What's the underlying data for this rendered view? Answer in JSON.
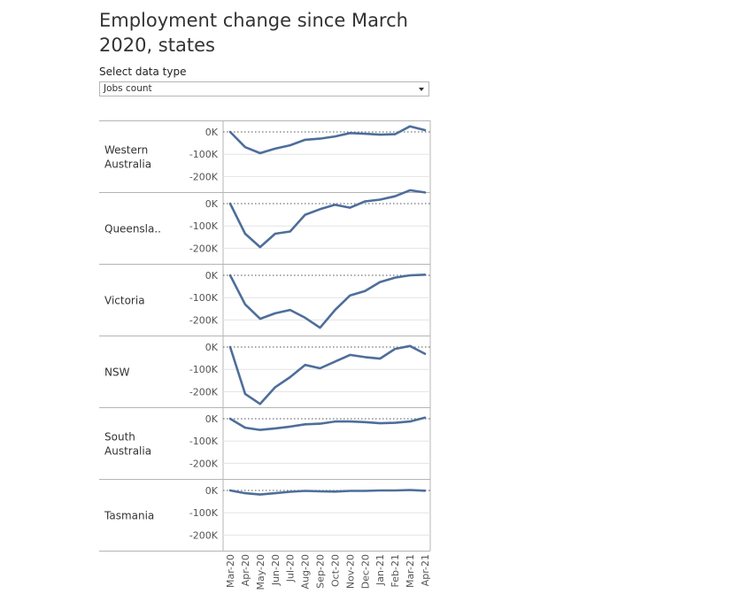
{
  "title": "Employment change since March 2020, states",
  "filter": {
    "label": "Select data type",
    "selected": "Jobs count"
  },
  "colors": {
    "line": "#4e6e9a",
    "grid": "#e3e3e3",
    "zero": "#777777",
    "border": "#b5b5b5"
  },
  "chart_data": {
    "type": "line",
    "x": [
      "Mar-20",
      "Apr-20",
      "May-20",
      "Jun-20",
      "Jul-20",
      "Aug-20",
      "Sep-20",
      "Oct-20",
      "Nov-20",
      "Dec-20",
      "Jan-21",
      "Feb-21",
      "Mar-21",
      "Apr-21"
    ],
    "yticks": [
      0,
      -100,
      -200
    ],
    "yticklabels": [
      "0K",
      "-100K",
      "-200K"
    ],
    "ylim": [
      -250,
      20
    ],
    "series": [
      {
        "name": "Western Australia",
        "label_lines": [
          "Western",
          "Australia"
        ],
        "values": [
          0,
          -68,
          -95,
          -75,
          -60,
          -35,
          -30,
          -20,
          -5,
          -8,
          -12,
          -10,
          25,
          8
        ]
      },
      {
        "name": "Queensla..",
        "label_lines": [
          "Queensla.."
        ],
        "values": [
          0,
          -135,
          -195,
          -135,
          -125,
          -50,
          -25,
          -5,
          -18,
          10,
          18,
          33,
          60,
          50
        ]
      },
      {
        "name": "Victoria",
        "label_lines": [
          "Victoria"
        ],
        "values": [
          0,
          -130,
          -195,
          -170,
          -155,
          -190,
          -235,
          -155,
          -90,
          -70,
          -30,
          -10,
          0,
          3
        ]
      },
      {
        "name": "NSW",
        "label_lines": [
          "NSW"
        ],
        "values": [
          0,
          -210,
          -255,
          -180,
          -135,
          -80,
          -95,
          -65,
          -35,
          -45,
          -52,
          -8,
          5,
          -30
        ]
      },
      {
        "name": "South Australia",
        "label_lines": [
          "South",
          "Australia"
        ],
        "values": [
          0,
          -40,
          -50,
          -43,
          -35,
          -25,
          -22,
          -12,
          -12,
          -15,
          -20,
          -18,
          -12,
          5
        ]
      },
      {
        "name": "Tasmania",
        "label_lines": [
          "Tasmania"
        ],
        "values": [
          0,
          -12,
          -18,
          -12,
          -6,
          -2,
          -4,
          -5,
          -2,
          -2,
          0,
          0,
          2,
          -1
        ]
      }
    ]
  }
}
